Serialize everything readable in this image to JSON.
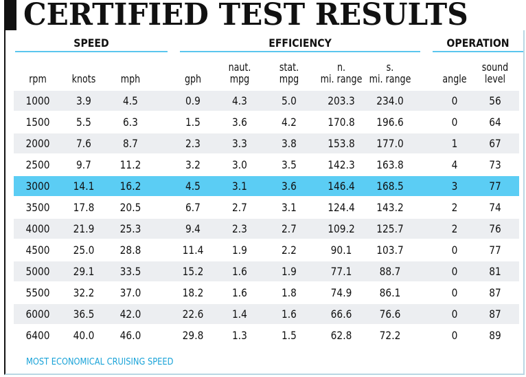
{
  "title": "CERTIFIED TEST RESULTS",
  "groups": {
    "speed": "SPEED",
    "efficiency": "EFFICIENCY",
    "operation": "OPERATION"
  },
  "columns": [
    "rpm",
    "knots",
    "mph",
    "gph",
    "naut. mpg",
    "stat. mpg",
    "n. mi. range",
    "s. mi. range",
    "angle",
    "sound level"
  ],
  "rows": [
    [
      "1000",
      "3.9",
      "4.5",
      "0.9",
      "4.3",
      "5.0",
      "203.3",
      "234.0",
      "0",
      "56"
    ],
    [
      "1500",
      "5.5",
      "6.3",
      "1.5",
      "3.6",
      "4.2",
      "170.8",
      "196.6",
      "0",
      "64"
    ],
    [
      "2000",
      "7.6",
      "8.7",
      "2.3",
      "3.3",
      "3.8",
      "153.8",
      "177.0",
      "1",
      "67"
    ],
    [
      "2500",
      "9.7",
      "11.2",
      "3.2",
      "3.0",
      "3.5",
      "142.3",
      "163.8",
      "4",
      "73"
    ],
    [
      "3000",
      "14.1",
      "16.2",
      "4.5",
      "3.1",
      "3.6",
      "146.4",
      "168.5",
      "3",
      "77"
    ],
    [
      "3500",
      "17.8",
      "20.5",
      "6.7",
      "2.7",
      "3.1",
      "124.4",
      "143.2",
      "2",
      "74"
    ],
    [
      "4000",
      "21.9",
      "25.3",
      "9.4",
      "2.3",
      "2.7",
      "109.2",
      "125.7",
      "2",
      "76"
    ],
    [
      "4500",
      "25.0",
      "28.8",
      "11.4",
      "1.9",
      "2.2",
      "90.1",
      "103.7",
      "0",
      "77"
    ],
    [
      "5000",
      "29.1",
      "33.5",
      "15.2",
      "1.6",
      "1.9",
      "77.1",
      "88.7",
      "0",
      "81"
    ],
    [
      "5500",
      "32.2",
      "37.0",
      "18.2",
      "1.6",
      "1.8",
      "74.9",
      "86.1",
      "0",
      "87"
    ],
    [
      "6000",
      "36.5",
      "42.0",
      "22.6",
      "1.4",
      "1.6",
      "66.6",
      "76.6",
      "0",
      "87"
    ],
    [
      "6400",
      "40.0",
      "46.0",
      "29.8",
      "1.3",
      "1.5",
      "62.8",
      "72.2",
      "0",
      "89"
    ]
  ],
  "highlight_row": 4,
  "footnote": "MOST ECONOMICAL CRUISING SPEED",
  "colors": {
    "highlight": "#5bcdf4",
    "alt_row": "#eceef1",
    "rule": "#5bc6ee",
    "footnote": "#1aa3d8"
  }
}
